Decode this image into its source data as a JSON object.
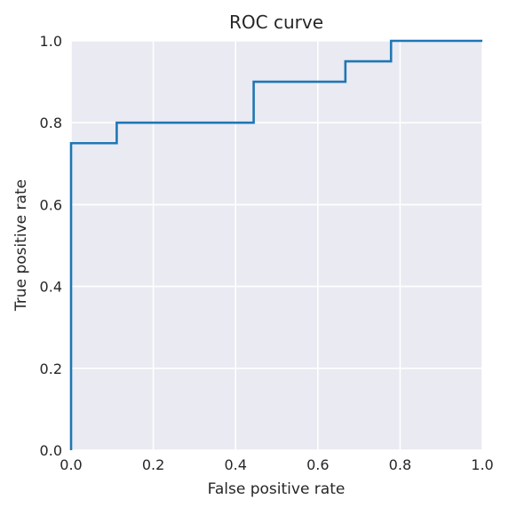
{
  "chart_data": {
    "type": "line",
    "title": "ROC curve",
    "xlabel": "False positive rate",
    "ylabel": "True positive rate",
    "xlim": [
      0.0,
      1.0
    ],
    "ylim": [
      0.0,
      1.0
    ],
    "xticks": [
      "0.0",
      "0.2",
      "0.4",
      "0.6",
      "0.8",
      "1.0"
    ],
    "yticks": [
      "0.0",
      "0.2",
      "0.4",
      "0.6",
      "0.8",
      "1.0"
    ],
    "grid": true,
    "series": [
      {
        "color": "#1f77b4",
        "x": [
          0.0,
          0.0,
          0.111,
          0.111,
          0.444,
          0.444,
          0.667,
          0.667,
          0.778,
          0.778,
          1.0
        ],
        "y": [
          0.0,
          0.75,
          0.75,
          0.8,
          0.8,
          0.9,
          0.9,
          0.95,
          0.95,
          1.0,
          1.0
        ]
      }
    ],
    "colors": {
      "plot_background": "#eaeaf2",
      "grid": "#ffffff",
      "text": "#262626"
    }
  }
}
